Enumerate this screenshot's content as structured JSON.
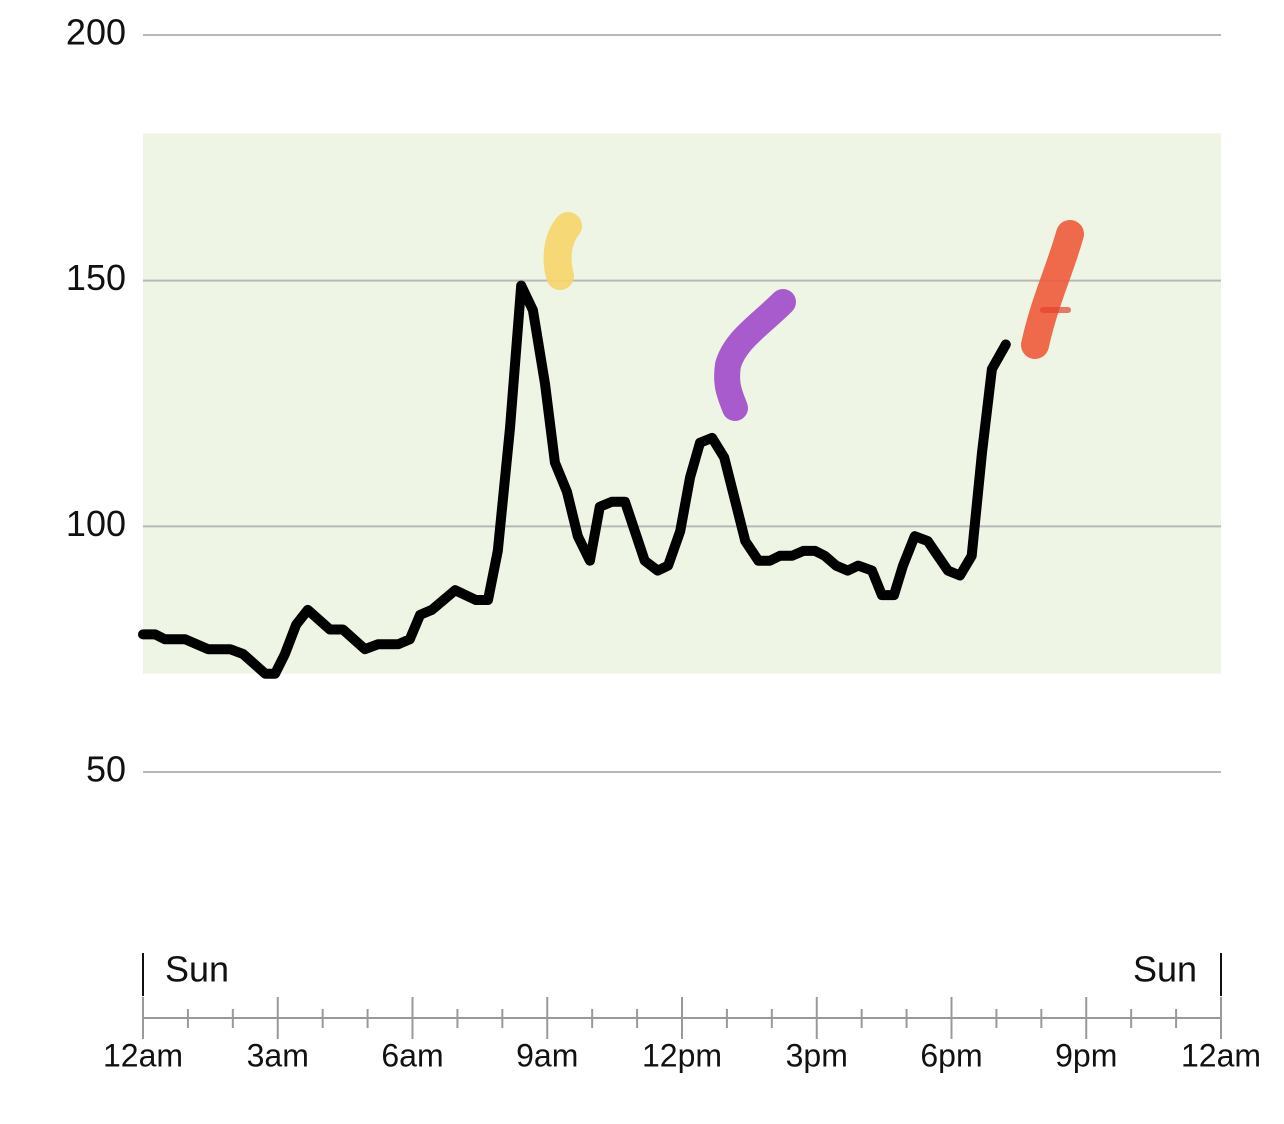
{
  "chart_data": {
    "type": "line",
    "x": [
      0,
      0.27,
      0.49,
      0.94,
      1.45,
      1.94,
      2.23,
      2.72,
      2.94,
      3.16,
      3.41,
      3.67,
      4.16,
      4.45,
      4.94,
      5.23,
      5.68,
      5.94,
      6.17,
      6.43,
      6.95,
      7.41,
      7.68,
      7.9,
      8.17,
      8.42,
      8.68,
      8.95,
      9.17,
      9.44,
      9.68,
      9.95,
      10.17,
      10.44,
      10.73,
      11.17,
      11.46,
      11.69,
      11.96,
      12.18,
      12.4,
      12.67,
      12.94,
      13.41,
      13.7,
      13.96,
      14.18,
      14.45,
      14.7,
      14.96,
      15.18,
      15.43,
      15.69,
      15.92,
      16.23,
      16.45,
      16.72,
      16.92,
      17.18,
      17.47,
      17.92,
      18.19,
      18.45,
      18.68,
      18.9,
      19.21
    ],
    "values": [
      78,
      78,
      77,
      77,
      75,
      75,
      74,
      70,
      70,
      74,
      80,
      83,
      79,
      79,
      75,
      76,
      76,
      77,
      82,
      83,
      87,
      85,
      85,
      95,
      120,
      149,
      144,
      129,
      113,
      107,
      98,
      93,
      104,
      105,
      105,
      93,
      91,
      92,
      99,
      110,
      117,
      118,
      114,
      97,
      93,
      93,
      94,
      94,
      95,
      95,
      94,
      92,
      91,
      92,
      91,
      86,
      86,
      92,
      98,
      97,
      91,
      90,
      94,
      115,
      132,
      137
    ],
    "color": "#000000",
    "target_range": [
      70,
      180
    ],
    "target_color": "#eef5e4",
    "xlim": [
      0,
      24
    ],
    "ylim": [
      50,
      200
    ],
    "yticks": [
      50,
      100,
      150,
      200
    ],
    "xticks": [
      {
        "value": 0,
        "label": "12am"
      },
      {
        "value": 3,
        "label": "3am"
      },
      {
        "value": 6,
        "label": "6am"
      },
      {
        "value": 9,
        "label": "9am"
      },
      {
        "value": 12,
        "label": "12pm"
      },
      {
        "value": 15,
        "label": "3pm"
      },
      {
        "value": 18,
        "label": "6pm"
      },
      {
        "value": 21,
        "label": "9pm"
      },
      {
        "value": 24,
        "label": "12am"
      }
    ],
    "minor_xticks": [
      1,
      2,
      4,
      5,
      7,
      8,
      10,
      11,
      13,
      14,
      16,
      17,
      19,
      20,
      22,
      23
    ],
    "day_labels": [
      {
        "value": 0,
        "label": "Sun"
      },
      {
        "value": 24,
        "label": "Sun"
      }
    ],
    "grid": true
  }
}
